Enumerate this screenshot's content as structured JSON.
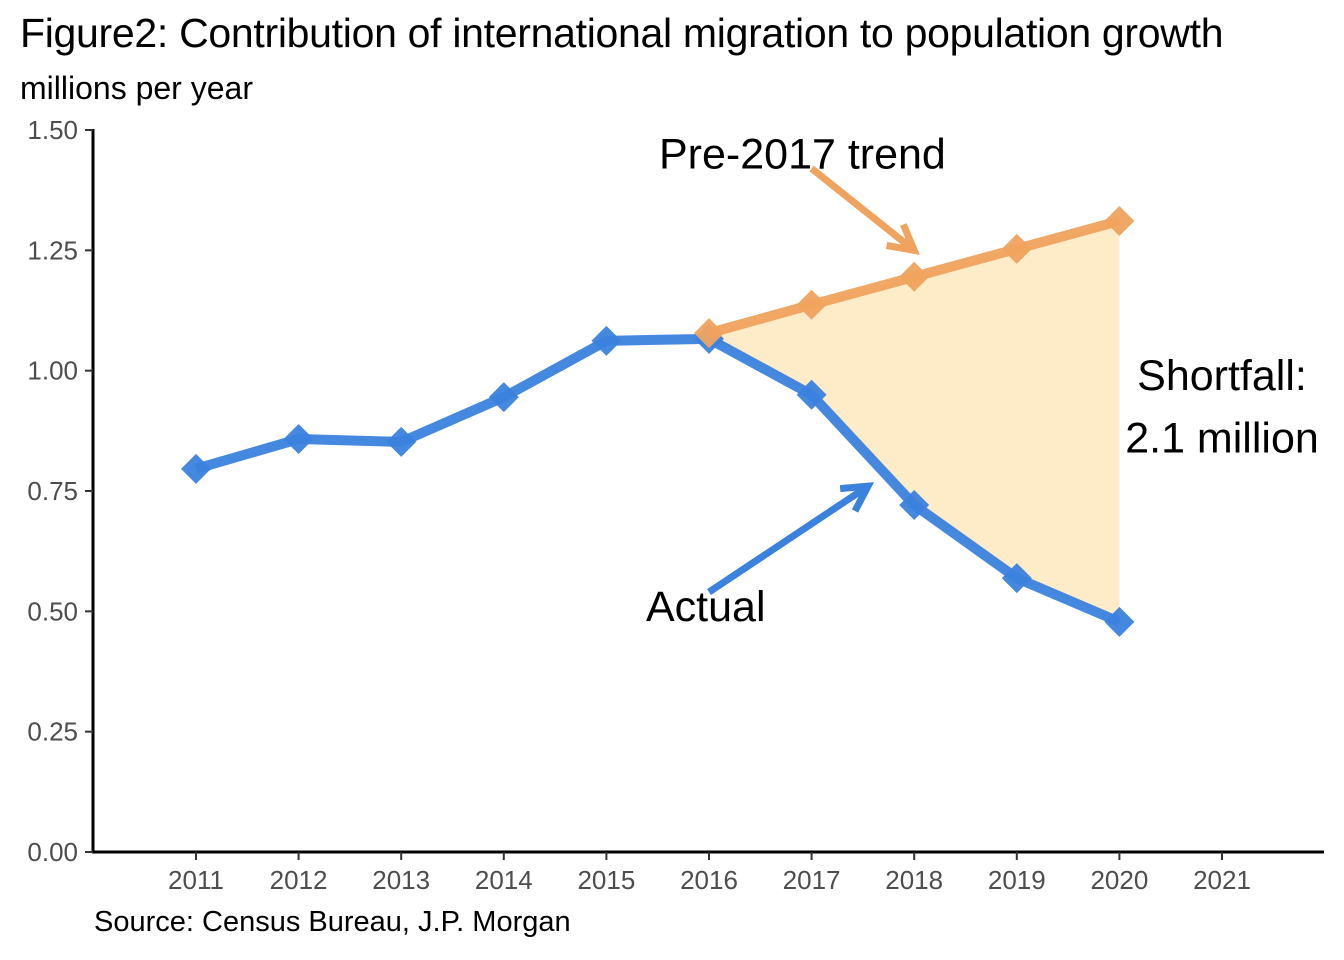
{
  "chart_data": {
    "type": "line",
    "title": "Figure2: Contribution of international migration to population growth",
    "subtitle": "millions per year",
    "xlabel": "",
    "ylabel": "millions per year",
    "source": "Source: Census Bureau, J.P. Morgan",
    "x_ticks": [
      "2011",
      "2012",
      "2013",
      "2014",
      "2015",
      "2016",
      "2017",
      "2018",
      "2019",
      "2020",
      "2021"
    ],
    "xlim": [
      2010,
      2022
    ],
    "y_ticks": [
      "0.00",
      "0.25",
      "0.50",
      "0.75",
      "1.00",
      "1.25",
      "1.50"
    ],
    "ylim": [
      0,
      1.5
    ],
    "grid": false,
    "legend": "none",
    "series": [
      {
        "name": "Actual",
        "color": "#3b82de",
        "marker": "diamond",
        "x": [
          2011,
          2012,
          2013,
          2014,
          2015,
          2016,
          2017,
          2018,
          2019,
          2020
        ],
        "values": [
          0.796,
          0.858,
          0.852,
          0.945,
          1.062,
          1.066,
          0.95,
          0.721,
          0.569,
          0.478
        ]
      },
      {
        "name": "Pre-2017 trend",
        "color": "#f0a35e",
        "marker": "diamond",
        "x": [
          2016,
          2017,
          2018,
          2019,
          2020
        ],
        "values": [
          1.078,
          1.137,
          1.195,
          1.253,
          1.311
        ]
      }
    ],
    "shaded_area": {
      "label": "Shortfall",
      "color": "#feebc8",
      "between": [
        "Pre-2017 trend",
        "Actual"
      ],
      "x_range": [
        2016,
        2020
      ]
    },
    "annotations": [
      {
        "id": "trend",
        "text": "Pre-2017 trend",
        "color": "#f0a35e",
        "text_at": [
          2016.05,
          1.42
        ],
        "arrow_from": [
          2017.0,
          1.42
        ],
        "arrow_to": [
          2018.0,
          1.25
        ]
      },
      {
        "id": "actual",
        "text": "Actual",
        "color": "#3b82de",
        "text_at": [
          2016.0,
          0.48
        ],
        "arrow_from": [
          2016.0,
          0.54
        ],
        "arrow_to": [
          2017.55,
          0.76
        ]
      },
      {
        "id": "shortfall1",
        "text": "Shortfall:",
        "text_at": [
          2021.0,
          0.96
        ]
      },
      {
        "id": "shortfall2",
        "text": "2.1 million",
        "text_at": [
          2021.0,
          0.83
        ]
      }
    ]
  }
}
